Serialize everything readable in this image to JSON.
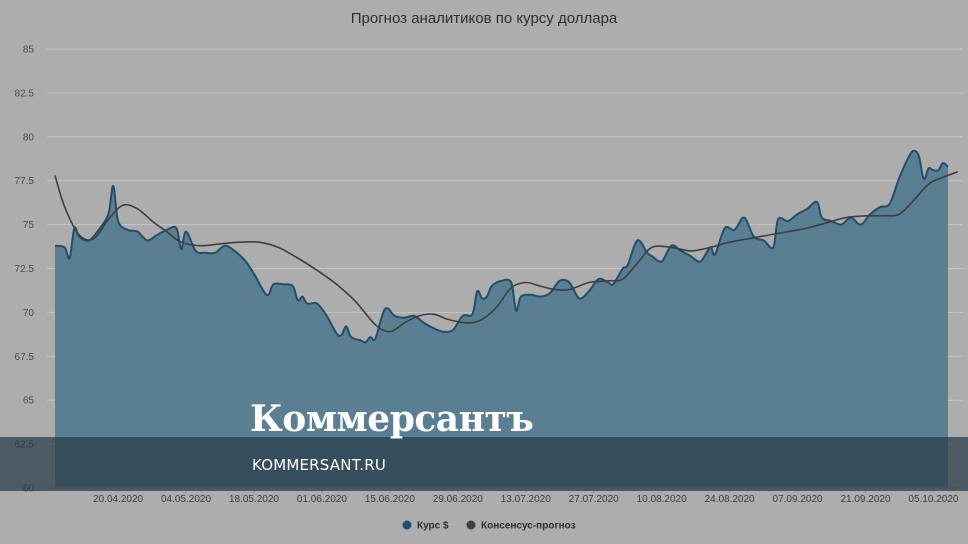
{
  "chart_data": {
    "type": "area",
    "title": "Прогноз аналитиков по курсу доллара",
    "xlabel": "",
    "ylabel": "",
    "ylim": [
      60,
      85
    ],
    "y_ticks": [
      "60",
      "62.5",
      "65",
      "67.5",
      "70",
      "72.5",
      "75",
      "77.5",
      "80",
      "82.5",
      "85"
    ],
    "x_ticks": [
      "20.04.2020",
      "04.05.2020",
      "18.05.2020",
      "01.06.2020",
      "15.06.2020",
      "29.06.2020",
      "13.07.2020",
      "27.07.2020",
      "10.08.2020",
      "24.08.2020",
      "07.09.2020",
      "21.09.2020",
      "05.10.2020"
    ],
    "x_range": [
      "2020-04-07",
      "2020-10-08"
    ],
    "grid": true,
    "legend_position": "bottom-center",
    "series": [
      {
        "name": "Курс $",
        "kind": "area",
        "color": "#1f4f6f",
        "fill": "#5a7f92",
        "points": [
          [
            "2020-04-07",
            73.8
          ],
          [
            "2020-04-09",
            73.7
          ],
          [
            "2020-04-10",
            73.1
          ],
          [
            "2020-04-11",
            74.8
          ],
          [
            "2020-04-12",
            74.3
          ],
          [
            "2020-04-14",
            74.1
          ],
          [
            "2020-04-16",
            74.7
          ],
          [
            "2020-04-18",
            75.6
          ],
          [
            "2020-04-19",
            77.2
          ],
          [
            "2020-04-20",
            75.2
          ],
          [
            "2020-04-22",
            74.7
          ],
          [
            "2020-04-24",
            74.6
          ],
          [
            "2020-04-26",
            74.1
          ],
          [
            "2020-04-28",
            74.4
          ],
          [
            "2020-04-30",
            74.7
          ],
          [
            "2020-05-02",
            74.8
          ],
          [
            "2020-05-03",
            73.6
          ],
          [
            "2020-05-04",
            74.6
          ],
          [
            "2020-05-06",
            73.5
          ],
          [
            "2020-05-08",
            73.4
          ],
          [
            "2020-05-10",
            73.4
          ],
          [
            "2020-05-12",
            73.8
          ],
          [
            "2020-05-14",
            73.5
          ],
          [
            "2020-05-16",
            73.0
          ],
          [
            "2020-05-18",
            72.2
          ],
          [
            "2020-05-20",
            71.2
          ],
          [
            "2020-05-21",
            71.0
          ],
          [
            "2020-05-22",
            71.6
          ],
          [
            "2020-05-24",
            71.6
          ],
          [
            "2020-05-26",
            71.5
          ],
          [
            "2020-05-27",
            70.7
          ],
          [
            "2020-05-28",
            70.9
          ],
          [
            "2020-05-29",
            70.5
          ],
          [
            "2020-05-31",
            70.5
          ],
          [
            "2020-06-02",
            69.8
          ],
          [
            "2020-06-04",
            68.8
          ],
          [
            "2020-06-05",
            68.7
          ],
          [
            "2020-06-06",
            69.2
          ],
          [
            "2020-06-07",
            68.6
          ],
          [
            "2020-06-09",
            68.4
          ],
          [
            "2020-06-10",
            68.3
          ],
          [
            "2020-06-11",
            68.6
          ],
          [
            "2020-06-12",
            68.5
          ],
          [
            "2020-06-14",
            70.2
          ],
          [
            "2020-06-16",
            69.8
          ],
          [
            "2020-06-18",
            69.7
          ],
          [
            "2020-06-20",
            69.8
          ],
          [
            "2020-06-22",
            69.4
          ],
          [
            "2020-06-24",
            69.1
          ],
          [
            "2020-06-26",
            68.9
          ],
          [
            "2020-06-28",
            69.0
          ],
          [
            "2020-06-30",
            69.8
          ],
          [
            "2020-07-02",
            69.9
          ],
          [
            "2020-07-03",
            71.2
          ],
          [
            "2020-07-04",
            70.8
          ],
          [
            "2020-07-05",
            70.9
          ],
          [
            "2020-07-06",
            71.5
          ],
          [
            "2020-07-08",
            71.8
          ],
          [
            "2020-07-10",
            71.7
          ],
          [
            "2020-07-11",
            70.1
          ],
          [
            "2020-07-12",
            70.9
          ],
          [
            "2020-07-14",
            71.0
          ],
          [
            "2020-07-16",
            70.9
          ],
          [
            "2020-07-18",
            71.1
          ],
          [
            "2020-07-20",
            71.8
          ],
          [
            "2020-07-22",
            71.7
          ],
          [
            "2020-07-24",
            70.8
          ],
          [
            "2020-07-26",
            71.2
          ],
          [
            "2020-07-28",
            71.9
          ],
          [
            "2020-07-30",
            71.7
          ],
          [
            "2020-07-31",
            71.6
          ],
          [
            "2020-08-02",
            72.5
          ],
          [
            "2020-08-03",
            72.7
          ],
          [
            "2020-08-05",
            74.1
          ],
          [
            "2020-08-07",
            73.4
          ],
          [
            "2020-08-08",
            73.2
          ],
          [
            "2020-08-10",
            72.9
          ],
          [
            "2020-08-12",
            73.8
          ],
          [
            "2020-08-14",
            73.5
          ],
          [
            "2020-08-16",
            73.2
          ],
          [
            "2020-08-18",
            72.9
          ],
          [
            "2020-08-20",
            73.7
          ],
          [
            "2020-08-21",
            73.3
          ],
          [
            "2020-08-23",
            74.8
          ],
          [
            "2020-08-25",
            74.7
          ],
          [
            "2020-08-27",
            75.4
          ],
          [
            "2020-08-29",
            74.3
          ],
          [
            "2020-08-31",
            74.1
          ],
          [
            "2020-09-02",
            73.7
          ],
          [
            "2020-09-03",
            75.3
          ],
          [
            "2020-09-05",
            75.2
          ],
          [
            "2020-09-07",
            75.6
          ],
          [
            "2020-09-09",
            75.9
          ],
          [
            "2020-09-11",
            76.3
          ],
          [
            "2020-09-12",
            75.4
          ],
          [
            "2020-09-14",
            75.2
          ],
          [
            "2020-09-16",
            75.0
          ],
          [
            "2020-09-18",
            75.4
          ],
          [
            "2020-09-20",
            75.0
          ],
          [
            "2020-09-22",
            75.6
          ],
          [
            "2020-09-24",
            76.0
          ],
          [
            "2020-09-26",
            76.2
          ],
          [
            "2020-09-28",
            77.7
          ],
          [
            "2020-09-30",
            78.9
          ],
          [
            "2020-10-01",
            79.2
          ],
          [
            "2020-10-02",
            78.9
          ],
          [
            "2020-10-03",
            77.6
          ],
          [
            "2020-10-04",
            78.2
          ],
          [
            "2020-10-05",
            78.1
          ],
          [
            "2020-10-06",
            78.1
          ],
          [
            "2020-10-07",
            78.5
          ],
          [
            "2020-10-08",
            78.3
          ]
        ]
      },
      {
        "name": "Консенсус-прогноз",
        "kind": "line",
        "color": "#3e3e3e",
        "points": [
          [
            "2020-04-07",
            77.8
          ],
          [
            "2020-04-09",
            76.0
          ],
          [
            "2020-04-12",
            74.4
          ],
          [
            "2020-04-15",
            74.2
          ],
          [
            "2020-04-18",
            75.3
          ],
          [
            "2020-04-21",
            76.1
          ],
          [
            "2020-04-24",
            75.9
          ],
          [
            "2020-04-27",
            75.2
          ],
          [
            "2020-04-30",
            74.6
          ],
          [
            "2020-05-03",
            74.0
          ],
          [
            "2020-05-07",
            73.8
          ],
          [
            "2020-05-11",
            73.9
          ],
          [
            "2020-05-15",
            74.0
          ],
          [
            "2020-05-19",
            74.0
          ],
          [
            "2020-05-23",
            73.7
          ],
          [
            "2020-05-27",
            73.1
          ],
          [
            "2020-05-31",
            72.4
          ],
          [
            "2020-06-04",
            71.6
          ],
          [
            "2020-06-08",
            70.6
          ],
          [
            "2020-06-12",
            69.3
          ],
          [
            "2020-06-15",
            68.9
          ],
          [
            "2020-06-18",
            69.4
          ],
          [
            "2020-06-21",
            69.8
          ],
          [
            "2020-06-24",
            69.9
          ],
          [
            "2020-06-27",
            69.6
          ],
          [
            "2020-07-01",
            69.4
          ],
          [
            "2020-07-04",
            69.6
          ],
          [
            "2020-07-07",
            70.3
          ],
          [
            "2020-07-10",
            71.4
          ],
          [
            "2020-07-13",
            71.7
          ],
          [
            "2020-07-16",
            71.5
          ],
          [
            "2020-07-19",
            71.3
          ],
          [
            "2020-07-22",
            71.3
          ],
          [
            "2020-07-26",
            71.7
          ],
          [
            "2020-07-30",
            71.8
          ],
          [
            "2020-08-02",
            71.9
          ],
          [
            "2020-08-05",
            72.8
          ],
          [
            "2020-08-08",
            73.7
          ],
          [
            "2020-08-12",
            73.7
          ],
          [
            "2020-08-16",
            73.5
          ],
          [
            "2020-08-20",
            73.7
          ],
          [
            "2020-08-24",
            74.0
          ],
          [
            "2020-08-28",
            74.2
          ],
          [
            "2020-09-01",
            74.4
          ],
          [
            "2020-09-05",
            74.6
          ],
          [
            "2020-09-09",
            74.8
          ],
          [
            "2020-09-13",
            75.1
          ],
          [
            "2020-09-17",
            75.4
          ],
          [
            "2020-09-21",
            75.5
          ],
          [
            "2020-09-25",
            75.5
          ],
          [
            "2020-09-28",
            75.6
          ],
          [
            "2020-10-01",
            76.4
          ],
          [
            "2020-10-04",
            77.3
          ],
          [
            "2020-10-07",
            77.7
          ],
          [
            "2020-10-10",
            78.0
          ]
        ]
      }
    ]
  },
  "watermark": {
    "logo": "Коммерсантъ",
    "site": "KOMMERSANT.RU"
  }
}
